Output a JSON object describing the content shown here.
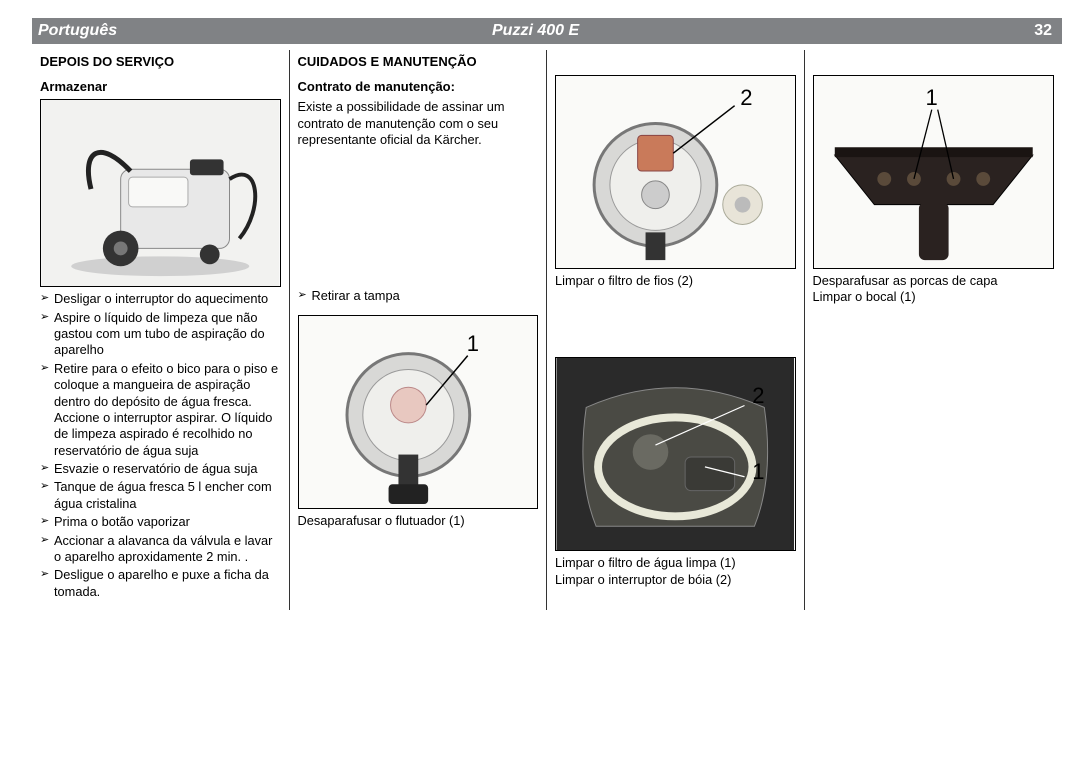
{
  "header": {
    "language": "Português",
    "product": "Puzzi 400 E",
    "page": "32"
  },
  "col1": {
    "heading": "DEPOIS DO SERVIÇO",
    "subheading": "Armazenar",
    "fig_alt": "machine-stored",
    "steps": [
      "Desligar o interruptor do aquecimento",
      "Aspire o líquido de limpeza que não gastou com um tubo de aspiração do aparelho",
      "Retire para o efeito o bico para o piso e coloque a mangueira de aspiração dentro do depósito de água fresca. Accione o interruptor aspirar. O líquido de limpeza aspirado é recolhido no reservatório de água suja",
      "Esvazie o reservatório de água suja",
      "Tanque de água fresca 5 l encher com água cristalina",
      "Prima o botão vaporizar",
      "Accionar a alavanca da válvula e lavar o aparelho aproxidamente 2 min. .",
      "Desligue o aparelho e puxe a ficha da tomada."
    ]
  },
  "col2": {
    "heading": "CUIDADOS E MANUTENÇÃO",
    "subheading": "Contrato de manutenção:",
    "paragraph": "Existe a possibilidade de assinar um contrato de manutenção com o seu representante oficial da Kärcher.",
    "step1": "Retirar a tampa",
    "fig2_alt": "float-unscrew",
    "fig2_callout": "1",
    "caption2": "Desaparafusar o flutuador (1)"
  },
  "col3": {
    "fig1_alt": "lint-filter",
    "fig1_callout": "2",
    "caption1": "Limpar o filtro de fios (2)",
    "fig2_alt": "fresh-water-filter",
    "fig2_callout_a": "2",
    "fig2_callout_b": "1",
    "caption2a": "Limpar o filtro de água limpa (1)",
    "caption2b": "Limpar o interruptor de bóia (2)"
  },
  "col4": {
    "fig1_alt": "nozzle-cap-nuts",
    "fig1_callout": "1",
    "caption1a": "Desparafusar as porcas de capa",
    "caption1b": "Limpar o bocal (1)"
  },
  "colors": {
    "header_bg": "#808285",
    "header_text": "#ffffff",
    "border": "#000000",
    "page_bg": "#ffffff"
  }
}
